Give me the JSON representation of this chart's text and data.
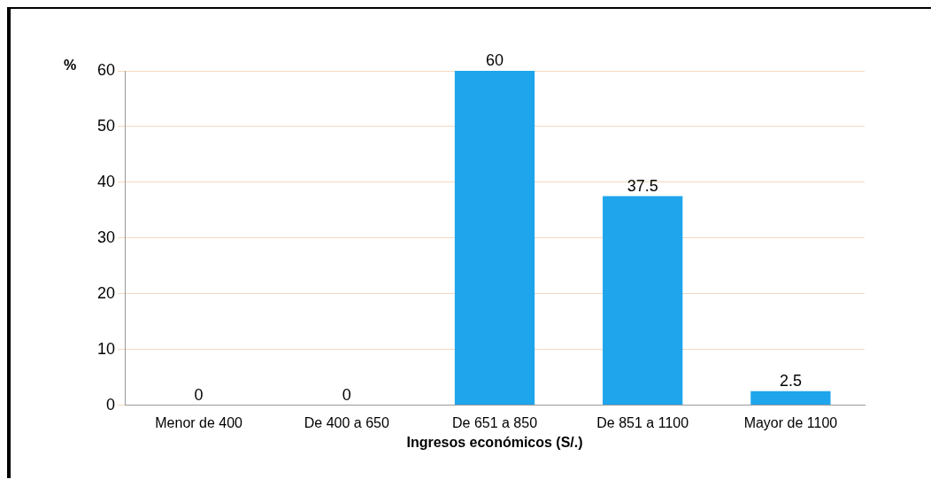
{
  "chart_data": {
    "type": "bar",
    "xlabel": "Ingresos económicos (S/.)",
    "ylabel": "%",
    "categories": [
      "Menor de 400",
      "De 400 a 650",
      "De 651 a 850",
      "De 851 a 1100",
      "Mayor de 1100"
    ],
    "values": [
      0,
      0,
      60,
      37.5,
      2.5
    ],
    "color": "#1ea5ec",
    "ylim": [
      0,
      60
    ],
    "yticks": [
      0,
      10,
      20,
      30,
      40,
      50,
      60
    ],
    "grid": "y",
    "data_labels": true,
    "legend": false
  }
}
